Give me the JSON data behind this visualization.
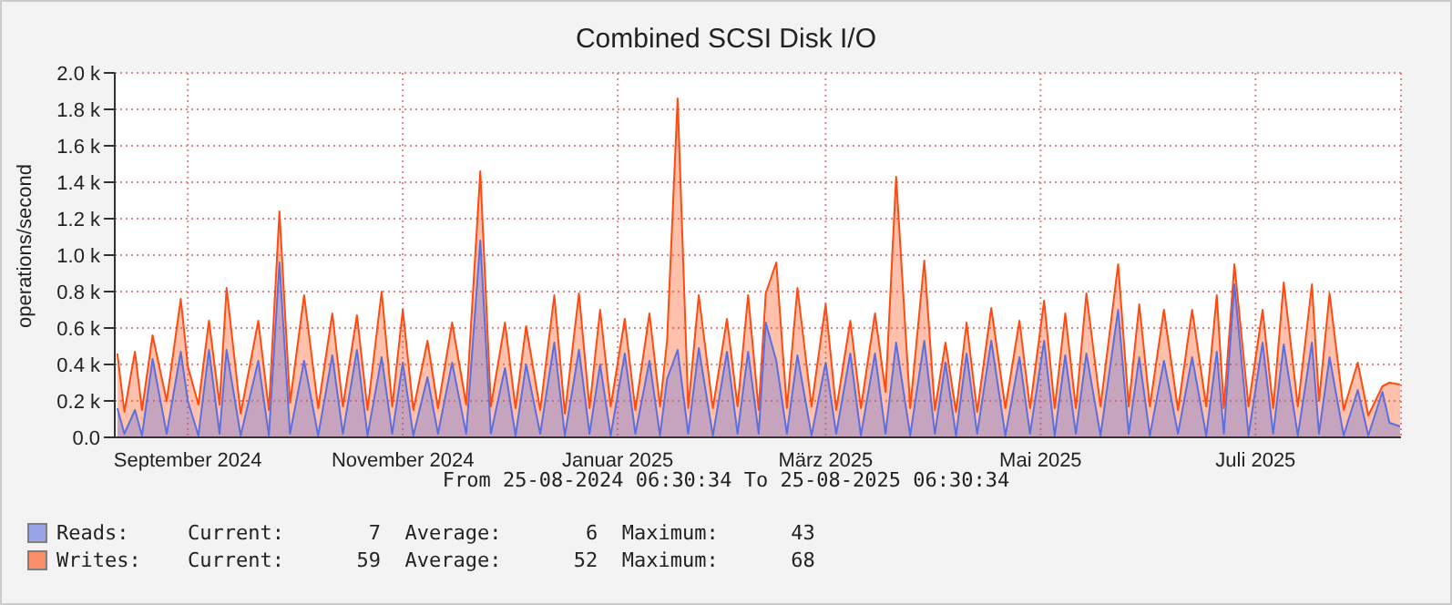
{
  "chart_data": {
    "type": "area",
    "title": "Combined SCSI Disk I/O",
    "ylabel": "operations/second",
    "annotations": [
      "From 25-08-2024 06:30:34 To 25-08-2025 06:30:34",
      "Current:       7  Average:       6  Maximum:      43",
      "Current:      59  Average:      52  Maximum:      68"
    ],
    "x": [
      "2024-08-26",
      "2024-08-28",
      "2024-08-31",
      "2024-09-02",
      "2024-09-05",
      "2024-09-09",
      "2024-09-13",
      "2024-09-15",
      "2024-09-18",
      "2024-09-21",
      "2024-09-24",
      "2024-09-26",
      "2024-09-30",
      "2024-10-05",
      "2024-10-08",
      "2024-10-11",
      "2024-10-14",
      "2024-10-18",
      "2024-10-22",
      "2024-10-26",
      "2024-10-29",
      "2024-11-02",
      "2024-11-05",
      "2024-11-09",
      "2024-11-12",
      "2024-11-15",
      "2024-11-18",
      "2024-11-22",
      "2024-11-25",
      "2024-11-29",
      "2024-12-03",
      "2024-12-07",
      "2024-12-10",
      "2024-12-14",
      "2024-12-17",
      "2024-12-20",
      "2024-12-24",
      "2024-12-28",
      "2024-12-31",
      "2025-01-04",
      "2025-01-07",
      "2025-01-10",
      "2025-01-13",
      "2025-01-17",
      "2025-01-20",
      "2025-01-24",
      "2025-01-27",
      "2025-01-29",
      "2025-02-01",
      "2025-02-04",
      "2025-02-07",
      "2025-02-11",
      "2025-02-15",
      "2025-02-18",
      "2025-02-21",
      "2025-02-24",
      "2025-02-26",
      "2025-03-01",
      "2025-03-04",
      "2025-03-07",
      "2025-03-11",
      "2025-03-15",
      "2025-03-18",
      "2025-03-22",
      "2025-03-25",
      "2025-03-29",
      "2025-04-01",
      "2025-04-04",
      "2025-04-08",
      "2025-04-12",
      "2025-04-15",
      "2025-04-18",
      "2025-04-21",
      "2025-04-24",
      "2025-04-27",
      "2025-05-01",
      "2025-05-05",
      "2025-05-09",
      "2025-05-12",
      "2025-05-16",
      "2025-05-19",
      "2025-05-22",
      "2025-05-25",
      "2025-05-28",
      "2025-06-01",
      "2025-06-06",
      "2025-06-09",
      "2025-06-12",
      "2025-06-15",
      "2025-06-19",
      "2025-06-23",
      "2025-06-27",
      "2025-07-01",
      "2025-07-04",
      "2025-07-06",
      "2025-07-09",
      "2025-07-13",
      "2025-07-17",
      "2025-07-20",
      "2025-07-23",
      "2025-07-27",
      "2025-07-31",
      "2025-08-02",
      "2025-08-05",
      "2025-08-09",
      "2025-08-13",
      "2025-08-16",
      "2025-08-20",
      "2025-08-22",
      "2025-08-25"
    ],
    "series": [
      {
        "name": "Reads:",
        "color": "#5b70e0",
        "values": [
          160,
          20,
          150,
          10,
          430,
          20,
          470,
          200,
          10,
          480,
          20,
          480,
          10,
          420,
          10,
          960,
          20,
          420,
          10,
          450,
          20,
          480,
          10,
          440,
          20,
          410,
          10,
          330,
          20,
          410,
          20,
          1080,
          20,
          380,
          10,
          400,
          20,
          520,
          10,
          480,
          20,
          400,
          10,
          460,
          20,
          420,
          10,
          320,
          480,
          20,
          490,
          10,
          470,
          20,
          470,
          20,
          630,
          420,
          20,
          450,
          10,
          410,
          20,
          460,
          10,
          460,
          20,
          520,
          10,
          530,
          20,
          410,
          10,
          460,
          20,
          530,
          10,
          440,
          20,
          530,
          10,
          450,
          20,
          460,
          10,
          700,
          20,
          440,
          10,
          420,
          20,
          440,
          10,
          470,
          20,
          840,
          10,
          520,
          20,
          510,
          10,
          520,
          20,
          440,
          10,
          260,
          10,
          250,
          80,
          60
        ]
      },
      {
        "name": "Writes:",
        "color": "#ff4a10",
        "values": [
          460,
          140,
          470,
          150,
          560,
          200,
          760,
          390,
          180,
          640,
          180,
          820,
          130,
          640,
          150,
          1240,
          190,
          780,
          160,
          680,
          170,
          670,
          150,
          800,
          170,
          700,
          150,
          530,
          160,
          630,
          180,
          1460,
          170,
          630,
          160,
          610,
          150,
          780,
          130,
          790,
          160,
          700,
          170,
          650,
          150,
          680,
          170,
          530,
          1860,
          160,
          780,
          160,
          650,
          170,
          780,
          150,
          790,
          960,
          160,
          820,
          170,
          730,
          150,
          640,
          160,
          680,
          250,
          1430,
          160,
          970,
          150,
          520,
          140,
          630,
          140,
          710,
          160,
          640,
          160,
          750,
          160,
          680,
          160,
          790,
          170,
          950,
          170,
          730,
          170,
          700,
          150,
          700,
          170,
          780,
          160,
          950,
          170,
          700,
          160,
          850,
          170,
          840,
          200,
          790,
          150,
          410,
          120,
          280,
          300,
          290
        ]
      }
    ],
    "xlim": [
      "2024-08-25T06:30",
      "2025-08-25T06:30"
    ],
    "xticks": [
      {
        "value": "2024-09-15",
        "label": "September 2024"
      },
      {
        "value": "2024-11-15",
        "label": "November 2024"
      },
      {
        "value": "2025-01-15",
        "label": "Januar 2025"
      },
      {
        "value": "2025-03-15",
        "label": "März 2025"
      },
      {
        "value": "2025-05-15",
        "label": "Mai 2025"
      },
      {
        "value": "2025-07-15",
        "label": "Juli 2025"
      }
    ],
    "ylim": [
      0,
      2000
    ],
    "yticks": [
      {
        "value": 0,
        "label": "0.0"
      },
      {
        "value": 200,
        "label": "0.2 k"
      },
      {
        "value": 400,
        "label": "0.4 k"
      },
      {
        "value": 600,
        "label": "0.6 k"
      },
      {
        "value": 800,
        "label": "0.8 k"
      },
      {
        "value": 1000,
        "label": "1.0 k"
      },
      {
        "value": 1200,
        "label": "1.2 k"
      },
      {
        "value": 1400,
        "label": "1.4 k"
      },
      {
        "value": 1600,
        "label": "1.6 k"
      },
      {
        "value": 1800,
        "label": "1.8 k"
      },
      {
        "value": 2000,
        "label": "2.0 k"
      }
    ],
    "grid": true,
    "legend": "bottom"
  }
}
